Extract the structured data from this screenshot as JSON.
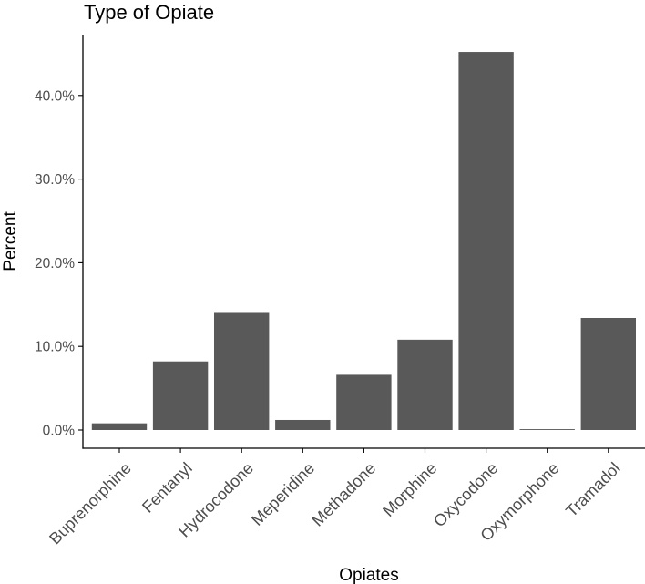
{
  "chart_data": {
    "type": "bar",
    "title": "Type of Opiate",
    "xlabel": "Opiates",
    "ylabel": "Percent",
    "categories": [
      "Buprenorphine",
      "Fentanyl",
      "Hydrocodone",
      "Meperidine",
      "Methadone",
      "Morphine",
      "Oxycodone",
      "Oxymorphone",
      "Tramadol"
    ],
    "values": [
      0.8,
      8.2,
      14.0,
      1.2,
      6.6,
      10.8,
      45.2,
      0.1,
      13.4
    ],
    "ylim": [
      0,
      45.2
    ],
    "yticks": [
      0,
      10,
      20,
      30,
      40
    ],
    "ytick_labels": [
      "0.0%",
      "10.0%",
      "20.0%",
      "30.0%",
      "40.0%"
    ],
    "grid": false,
    "bar_color": "#595959",
    "axis_color": "#000000",
    "tick_label_color": "#4d4d4d"
  }
}
